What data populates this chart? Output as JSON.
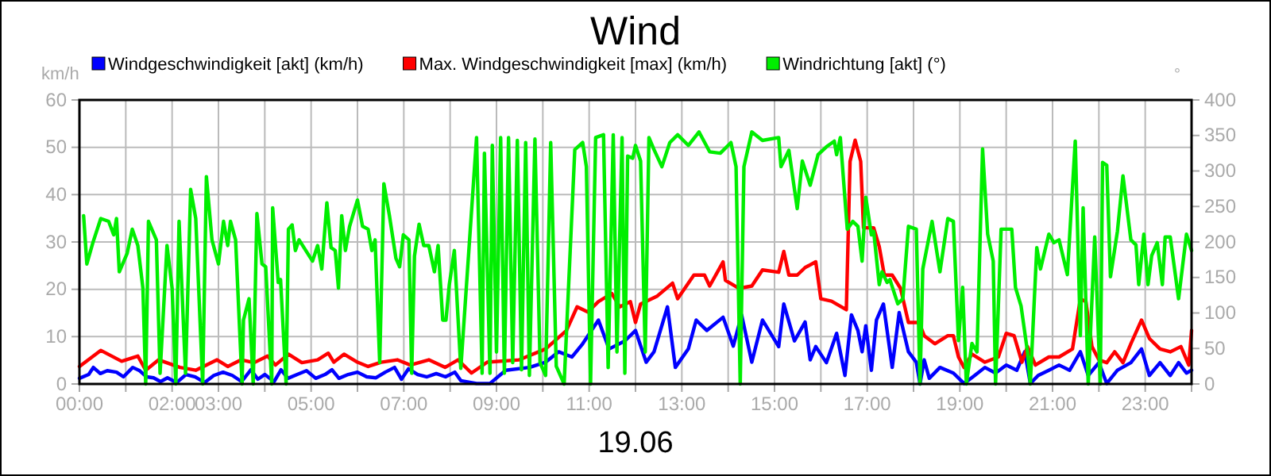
{
  "chart_data": {
    "type": "line",
    "title": "Wind",
    "xlabel": "19.06",
    "ylabel": "km/h",
    "y2label": "°",
    "legend": "top left",
    "grid": true,
    "line_style": "solid",
    "marker": "none",
    "xlim": [
      0,
      24
    ],
    "xticks": [
      {
        "value": 0,
        "label": "00:00"
      },
      {
        "value": 1,
        "label": null
      },
      {
        "value": 2,
        "label": "02:00"
      },
      {
        "value": 3,
        "label": "03:00"
      },
      {
        "value": 4,
        "label": null
      },
      {
        "value": 5,
        "label": "05:00"
      },
      {
        "value": 6,
        "label": null
      },
      {
        "value": 7,
        "label": "07:00"
      },
      {
        "value": 8,
        "label": null
      },
      {
        "value": 9,
        "label": "09:00"
      },
      {
        "value": 10,
        "label": null
      },
      {
        "value": 11,
        "label": "11:00"
      },
      {
        "value": 12,
        "label": null
      },
      {
        "value": 13,
        "label": "13:00"
      },
      {
        "value": 14,
        "label": null
      },
      {
        "value": 15,
        "label": "15:00"
      },
      {
        "value": 16,
        "label": null
      },
      {
        "value": 17,
        "label": "17:00"
      },
      {
        "value": 18,
        "label": null
      },
      {
        "value": 19,
        "label": "19:00"
      },
      {
        "value": 20,
        "label": null
      },
      {
        "value": 21,
        "label": "21:00"
      },
      {
        "value": 22,
        "label": null
      },
      {
        "value": 23,
        "label": "23:00"
      },
      {
        "value": 24,
        "label": null
      }
    ],
    "ylim": [
      0,
      60
    ],
    "yticks": [
      0,
      10,
      20,
      30,
      40,
      50,
      60
    ],
    "y2lim": [
      0,
      400
    ],
    "y2ticks": [
      0,
      50,
      100,
      150,
      200,
      250,
      300,
      350,
      400
    ],
    "series": [
      {
        "name": "Windgeschwindigkeit [akt] (km/h)",
        "color": "#0000ff",
        "axis": "y",
        "x": [
          0,
          0.2,
          0.3,
          0.45,
          0.6,
          0.8,
          0.95,
          1.15,
          1.3,
          1.45,
          1.6,
          1.75,
          1.9,
          2.1,
          2.3,
          2.5,
          2.7,
          2.9,
          3.1,
          3.3,
          3.5,
          3.7,
          3.85,
          4,
          4.2,
          4.35,
          4.5,
          4.7,
          4.9,
          5.1,
          5.3,
          5.45,
          5.6,
          5.8,
          6,
          6.2,
          6.4,
          6.6,
          6.8,
          6.95,
          7.1,
          7.3,
          7.5,
          7.7,
          7.9,
          8.1,
          8.23,
          8.57,
          8.86,
          9.2,
          9.71,
          10.06,
          10.34,
          10.63,
          10.86,
          11.2,
          11.43,
          11.77,
          12,
          12.23,
          12.4,
          12.69,
          12.86,
          13.14,
          13.31,
          13.54,
          13.89,
          14.11,
          14.29,
          14.51,
          14.74,
          15.09,
          15.2,
          15.43,
          15.66,
          15.77,
          15.89,
          16.12,
          16.34,
          16.52,
          16.66,
          16.8,
          16.89,
          16.97,
          17.09,
          17.2,
          17.35,
          17.54,
          17.69,
          17.89,
          18.06,
          18.14,
          18.23,
          18.34,
          18.57,
          18.86,
          19.09,
          19.32,
          19.54,
          19.77,
          20,
          20.23,
          20.4,
          20.52,
          20.69,
          20.92,
          21.14,
          21.37,
          21.6,
          21.77,
          22,
          22.17,
          22.4,
          22.69,
          22.92,
          23.09,
          23.32,
          23.54,
          23.72,
          23.89,
          24
        ],
        "values": [
          1.2,
          2,
          3.5,
          2.2,
          2.8,
          2.5,
          1.5,
          3.5,
          2.8,
          1.5,
          1.3,
          0.5,
          1.3,
          0.3,
          2,
          1.5,
          0.3,
          1.8,
          2.5,
          1.8,
          0.5,
          3,
          1,
          2,
          0.5,
          3,
          1.2,
          2,
          2.8,
          1.2,
          2,
          3,
          1.2,
          2,
          2.5,
          1.5,
          1.3,
          2.5,
          3.5,
          1,
          3.2,
          2,
          1.5,
          2.2,
          1.5,
          2.5,
          0.7,
          0.1,
          0.1,
          2.9,
          3.5,
          4.6,
          6.8,
          5.7,
          8.5,
          13.5,
          7.4,
          9.1,
          11.3,
          4.6,
          6.8,
          16.3,
          3.5,
          7.4,
          13.5,
          11.3,
          14.1,
          8,
          14.6,
          4.6,
          13.5,
          7.9,
          16.9,
          9.1,
          13.1,
          5.1,
          7.9,
          4.5,
          10.7,
          1.8,
          14.6,
          11.3,
          6.8,
          12.3,
          2.9,
          13.5,
          16.9,
          3.5,
          15.1,
          6.8,
          4.6,
          0,
          5.1,
          1.2,
          3.5,
          2.3,
          0.1,
          1.8,
          3.5,
          2.3,
          4,
          2.9,
          6.8,
          0.1,
          1.8,
          2.9,
          4,
          2.9,
          6.8,
          1.8,
          4.5,
          0.1,
          2.9,
          4.5,
          7.4,
          1.8,
          4.5,
          1.8,
          4.5,
          2.3,
          2.9
        ]
      },
      {
        "name": "Max. Windgeschwindigkeit [max] (km/h)",
        "color": "#ff0000",
        "axis": "y",
        "x": [
          0,
          0.46,
          0.91,
          1.26,
          1.43,
          1.71,
          2.17,
          2.51,
          2.97,
          3.2,
          3.49,
          3.77,
          4.06,
          4.23,
          4.51,
          4.8,
          5.14,
          5.37,
          5.49,
          5.71,
          6,
          6.23,
          6.51,
          6.86,
          7.14,
          7.54,
          7.89,
          8.17,
          8.46,
          8.8,
          9.49,
          10.06,
          10.51,
          10.74,
          10.97,
          11.2,
          11.49,
          11.66,
          11.89,
          12,
          12.11,
          12.46,
          12.8,
          12.91,
          13.26,
          13.49,
          13.6,
          13.89,
          13.94,
          14.23,
          14.51,
          14.74,
          15.09,
          15.2,
          15.31,
          15.49,
          15.66,
          15.89,
          16,
          16.23,
          16.55,
          16.63,
          16.74,
          16.86,
          16.92,
          17.14,
          17.26,
          17.37,
          17.54,
          17.72,
          17.89,
          18.12,
          18.23,
          18.46,
          18.74,
          18.86,
          18.97,
          19.09,
          19.26,
          19.54,
          19.83,
          20,
          20.17,
          20.34,
          20.46,
          20.63,
          20.92,
          21.14,
          21.43,
          21.6,
          21.72,
          21.85,
          22,
          22.17,
          22.34,
          22.52,
          22.69,
          22.92,
          23.09,
          23.32,
          23.54,
          23.77,
          23.94,
          24
        ],
        "values": [
          3.7,
          7.1,
          4.8,
          5.9,
          2.9,
          5.1,
          3.5,
          2.9,
          5.1,
          3.7,
          5.1,
          4.5,
          5.9,
          4,
          6.3,
          4.5,
          5.1,
          6.5,
          4.6,
          6.3,
          4.6,
          3.7,
          4.6,
          5.1,
          4,
          5.1,
          3.5,
          5.1,
          2.3,
          4.6,
          5.1,
          7.4,
          11.3,
          16.3,
          15.2,
          17.4,
          19.1,
          16.3,
          17.4,
          13,
          16.9,
          18.5,
          21.3,
          18,
          23,
          23,
          20.7,
          25.8,
          21.9,
          20.2,
          20.7,
          24.1,
          23.6,
          28,
          23,
          23,
          24.6,
          25.8,
          18,
          17.5,
          15.7,
          47,
          51.5,
          47,
          33,
          33,
          29,
          23,
          23,
          20.2,
          13,
          13,
          10.2,
          8.5,
          10.2,
          10.2,
          5.7,
          3.5,
          6.3,
          4.6,
          5.7,
          10.7,
          10.2,
          4.6,
          7.9,
          4,
          5.7,
          5.7,
          7.4,
          18,
          17.4,
          7.9,
          5.1,
          4.5,
          6.8,
          4.5,
          8.5,
          13.5,
          9.6,
          7.4,
          6.8,
          7.9,
          4,
          11.3
        ]
      },
      {
        "name": "Windrichtung [akt] (°)",
        "color": "#00ee00",
        "axis": "y2",
        "x": [
          0.09,
          0.16,
          0.29,
          0.46,
          0.63,
          0.74,
          0.8,
          0.86,
          1.03,
          1.14,
          1.26,
          1.37,
          1.43,
          1.49,
          1.66,
          1.74,
          1.89,
          2,
          2.08,
          2.15,
          2.29,
          2.4,
          2.51,
          2.66,
          2.74,
          2.86,
          3,
          3.11,
          3.2,
          3.26,
          3.37,
          3.51,
          3.54,
          3.66,
          3.75,
          3.83,
          3.94,
          4.02,
          4.15,
          4.17,
          4.29,
          4.34,
          4.46,
          4.51,
          4.59,
          4.66,
          4.74,
          5.03,
          5.14,
          5.23,
          5.34,
          5.43,
          5.52,
          5.59,
          5.66,
          5.74,
          5.83,
          6,
          6.11,
          6.23,
          6.31,
          6.38,
          6.48,
          6.57,
          6.69,
          6.83,
          6.91,
          6.99,
          7.11,
          7.17,
          7.23,
          7.33,
          7.43,
          7.54,
          7.66,
          7.74,
          7.84,
          7.91,
          7.98,
          8.09,
          8.23,
          8.57,
          8.69,
          8.74,
          8.86,
          8.91,
          9,
          9.09,
          9.17,
          9.26,
          9.35,
          9.45,
          9.54,
          9.63,
          9.71,
          9.83,
          9.94,
          10.06,
          10.17,
          10.29,
          10.46,
          10.69,
          10.86,
          10.94,
          11.03,
          11.14,
          11.31,
          11.41,
          11.52,
          11.6,
          11.71,
          11.77,
          11.83,
          11.94,
          12,
          12.11,
          12.21,
          12.29,
          12.4,
          12.57,
          12.74,
          12.91,
          13.14,
          13.37,
          13.6,
          13.83,
          14.06,
          14.17,
          14.26,
          14.34,
          14.51,
          14.74,
          15.09,
          15.14,
          15.31,
          15.49,
          15.6,
          15.77,
          15.94,
          16.12,
          16.29,
          16.34,
          16.42,
          16.57,
          16.69,
          16.8,
          16.89,
          16.97,
          17.09,
          17.14,
          17.26,
          17.32,
          17.43,
          17.49,
          17.66,
          17.77,
          17.89,
          18.06,
          18.14,
          18.2,
          18.4,
          18.57,
          18.74,
          18.86,
          18.97,
          19.06,
          19.14,
          19.26,
          19.37,
          19.49,
          19.6,
          19.72,
          19.77,
          19.89,
          20.12,
          20.2,
          20.32,
          20.46,
          20.52,
          20.66,
          20.74,
          20.92,
          21.03,
          21.14,
          21.32,
          21.49,
          21.6,
          21.66,
          21.77,
          21.91,
          22.03,
          22.08,
          22.17,
          22.25,
          22.4,
          22.52,
          22.69,
          22.8,
          22.86,
          22.97,
          23.06,
          23.14,
          23.26,
          23.37,
          23.43,
          23.54,
          23.72,
          23.89,
          24
        ],
        "values": [
          237,
          169,
          199,
          233,
          229,
          210,
          233,
          158,
          184,
          218,
          195,
          135,
          0,
          229,
          203,
          15,
          195,
          135,
          0,
          229,
          15,
          274,
          233,
          0,
          292,
          203,
          169,
          229,
          195,
          229,
          203,
          0,
          90,
          120,
          0,
          240,
          169,
          165,
          0,
          248,
          143,
          147,
          0,
          218,
          224,
          188,
          203,
          173,
          195,
          162,
          255,
          192,
          188,
          135,
          237,
          188,
          222,
          259,
          222,
          218,
          188,
          203,
          30,
          282,
          237,
          177,
          165,
          210,
          203,
          15,
          180,
          225,
          195,
          195,
          158,
          195,
          90,
          90,
          139,
          188,
          22,
          347,
          15,
          325,
          15,
          336,
          45,
          347,
          15,
          347,
          30,
          343,
          20,
          340,
          12,
          345,
          30,
          12,
          340,
          25,
          0,
          330,
          340,
          306,
          0,
          347,
          351,
          23,
          351,
          45,
          347,
          15,
          321,
          318,
          336,
          314,
          45,
          347,
          330,
          306,
          340,
          351,
          336,
          355,
          327,
          325,
          340,
          306,
          0,
          306,
          355,
          343,
          347,
          306,
          329,
          247,
          314,
          280,
          323,
          334,
          342,
          323,
          347,
          218,
          229,
          222,
          173,
          263,
          210,
          215,
          140,
          158,
          143,
          147,
          113,
          120,
          222,
          218,
          0,
          162,
          229,
          158,
          233,
          229,
          61,
          136,
          0,
          57,
          45,
          331,
          211,
          173,
          0,
          218,
          218,
          136,
          110,
          45,
          0,
          192,
          162,
          211,
          199,
          203,
          154,
          342,
          68,
          248,
          0,
          207,
          0,
          312,
          308,
          151,
          215,
          293,
          203,
          196,
          140,
          211,
          140,
          181,
          199,
          140,
          207,
          207,
          120,
          211,
          188
        ]
      }
    ]
  }
}
